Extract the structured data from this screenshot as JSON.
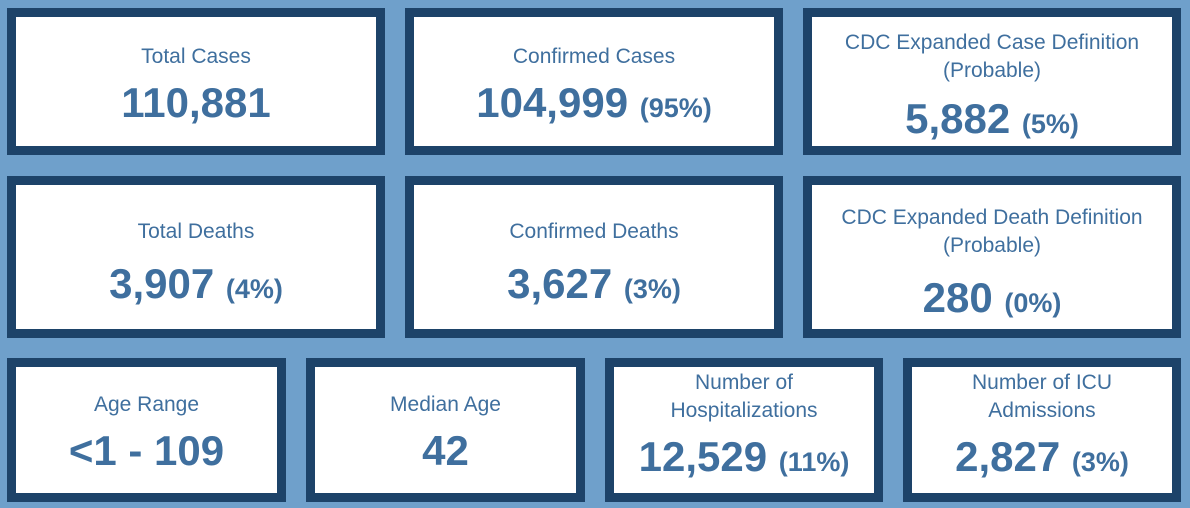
{
  "theme": {
    "background": "#6fa0cb",
    "card_border": "#1d4369",
    "card_bg": "#ffffff",
    "text": "#3f6f9e"
  },
  "cards": [
    {
      "label": "Total Cases",
      "value": "110,881",
      "pct": ""
    },
    {
      "label": "Confirmed Cases",
      "value": "104,999",
      "pct": "(95%)"
    },
    {
      "label": "CDC Expanded Case Definition",
      "label2": "(Probable)",
      "value": "5,882",
      "pct": "(5%)"
    },
    {
      "label": "Total Deaths",
      "value": "3,907",
      "pct": "(4%)"
    },
    {
      "label": "Confirmed Deaths",
      "value": "3,627",
      "pct": "(3%)"
    },
    {
      "label": "CDC Expanded Death Definition",
      "label2": "(Probable)",
      "value": "280",
      "pct": "(0%)"
    },
    {
      "label": "Age Range",
      "value": "<1 - 109",
      "pct": ""
    },
    {
      "label": "Median Age",
      "value": "42",
      "pct": ""
    },
    {
      "label": "Number of",
      "label2": "Hospitalizations",
      "value": "12,529",
      "pct": "(11%)"
    },
    {
      "label": "Number of ICU",
      "label2": "Admissions",
      "value": "2,827",
      "pct": "(3%)"
    }
  ]
}
